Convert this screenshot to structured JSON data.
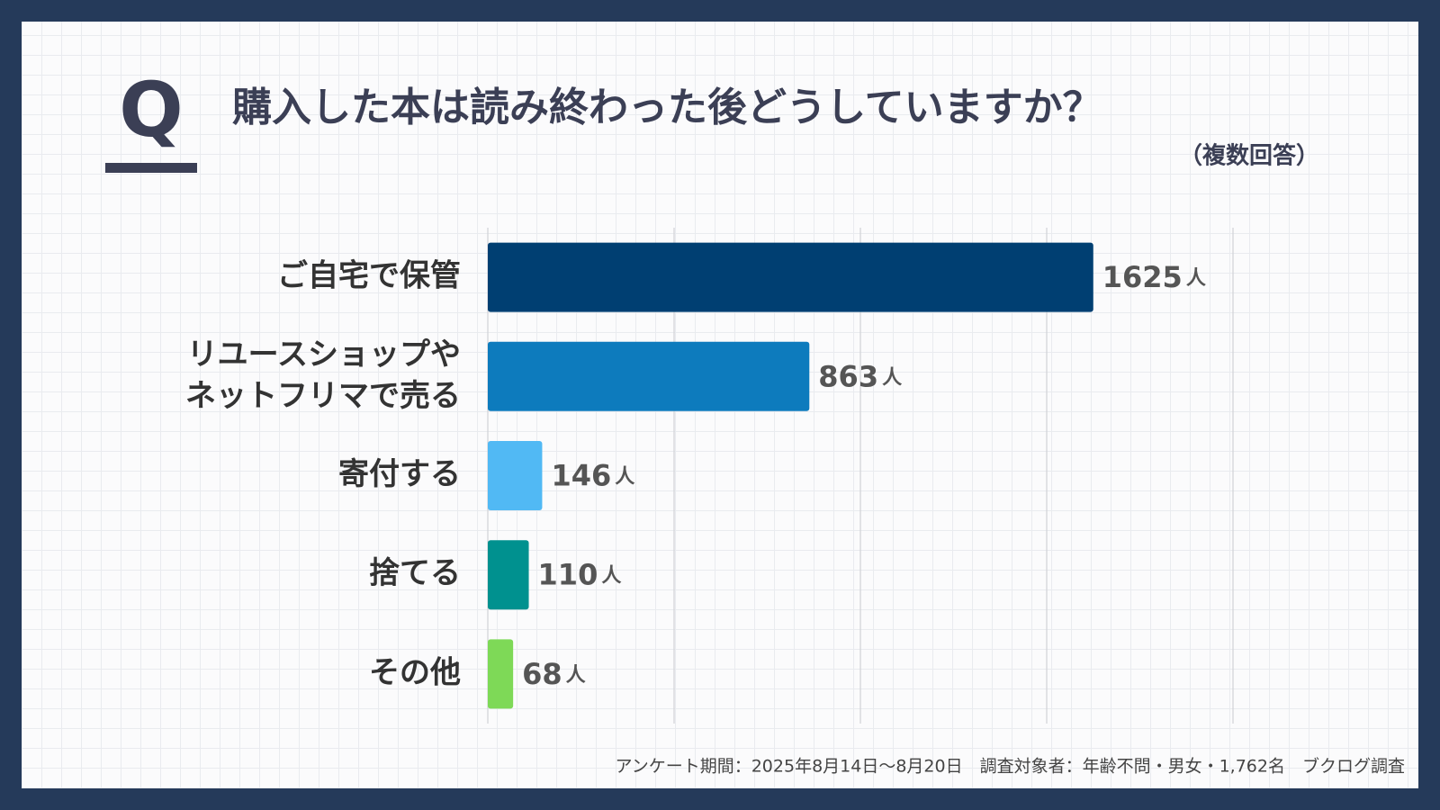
{
  "chart_data": {
    "type": "bar",
    "orientation": "horizontal",
    "question_mark": "Q",
    "title": "購入した本は読み終わった後どうしていますか？",
    "subtitle": "（複数回答）",
    "categories": [
      [
        "ご自宅で保管"
      ],
      [
        "リユースショップや",
        "ネットフリマで売る"
      ],
      [
        "寄付する"
      ],
      [
        "捨てる"
      ],
      [
        "その他"
      ]
    ],
    "values": [
      1625,
      863,
      146,
      110,
      68
    ],
    "value_unit": "人",
    "colors": [
      "#003f72",
      "#0d7bbd",
      "#51b9f4",
      "#00918f",
      "#7ed957"
    ],
    "xlim": [
      0,
      2000
    ],
    "xticks": [
      0,
      500,
      1000,
      1500,
      2000
    ],
    "grid": true,
    "footnote": "アンケート期間：2025年8月14日～8月20日　調査対象者：年齢不問・男女・1,762名　ブクログ調査"
  }
}
